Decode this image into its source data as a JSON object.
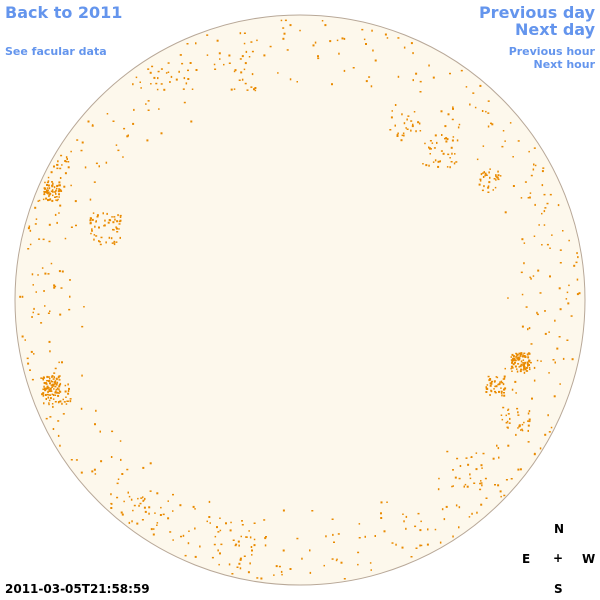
{
  "nav": {
    "back_label": "Back to 2011",
    "facular_label": "See facular data",
    "previous_day_label": "Previous day",
    "next_day_label": "Next day",
    "previous_hour_label": "Previous hour",
    "next_hour_label": "Next hour"
  },
  "compass": {
    "north": "N",
    "east": "E",
    "center": "+",
    "west": "W",
    "south": "S"
  },
  "timestamp": "2011-03-05T21:58:59",
  "colors": {
    "disk_fill": "#FDF8EC",
    "disk_stroke": "#B8A898",
    "facula": "#E98A00",
    "link": "#6495ED"
  }
}
